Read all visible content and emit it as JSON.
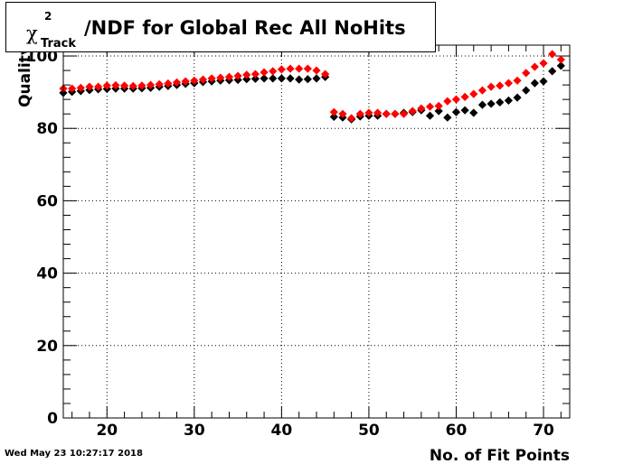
{
  "title": {
    "chi": "χ",
    "superscript": "2",
    "subscript": "Track",
    "rest": "/NDF for Global Rec All NoHits"
  },
  "timestamp": "Wed May 23 10:27:17 2018",
  "chart_data": {
    "type": "scatter",
    "xlabel": "No. of Fit Points",
    "ylabel": "Quality",
    "xlim": [
      15,
      73
    ],
    "ylim": [
      0,
      103
    ],
    "xticks": [
      20,
      30,
      40,
      50,
      60,
      70
    ],
    "yticks": [
      0,
      20,
      40,
      60,
      80,
      100
    ],
    "grid": true,
    "series": [
      {
        "color": "#000000",
        "x": [
          15,
          16,
          17,
          18,
          19,
          20,
          21,
          22,
          23,
          24,
          25,
          26,
          27,
          28,
          29,
          30,
          31,
          32,
          33,
          34,
          35,
          36,
          37,
          38,
          39,
          40,
          41,
          42,
          43,
          44,
          45,
          46,
          47,
          48,
          49,
          50,
          51,
          52,
          53,
          54,
          55,
          56,
          57,
          58,
          59,
          60,
          61,
          62,
          63,
          64,
          65,
          66,
          67,
          68,
          69,
          70,
          71,
          72
        ],
        "y": [
          89.8,
          90.1,
          90.3,
          90.6,
          90.8,
          90.9,
          91.0,
          91.0,
          91.0,
          91.1,
          91.2,
          91.5,
          91.7,
          92.0,
          92.3,
          92.5,
          92.8,
          93.0,
          93.2,
          93.3,
          93.4,
          93.6,
          93.7,
          93.8,
          93.8,
          93.8,
          93.8,
          93.5,
          93.6,
          93.8,
          94.2,
          83.2,
          83.0,
          82.5,
          83.3,
          83.5,
          83.5,
          84.0,
          84.0,
          84.3,
          84.5,
          85.0,
          83.5,
          84.8,
          83.0,
          84.5,
          85.0,
          84.3,
          86.5,
          86.8,
          87.2,
          87.7,
          88.5,
          90.5,
          92.5,
          93.0,
          95.8,
          97.3
        ]
      },
      {
        "color": "#ff0000",
        "x": [
          15,
          16,
          17,
          18,
          19,
          20,
          21,
          22,
          23,
          24,
          25,
          26,
          27,
          28,
          29,
          30,
          31,
          32,
          33,
          34,
          35,
          36,
          37,
          38,
          39,
          40,
          41,
          42,
          43,
          44,
          45,
          46,
          47,
          48,
          49,
          50,
          51,
          52,
          53,
          54,
          55,
          56,
          57,
          58,
          59,
          60,
          61,
          62,
          63,
          64,
          65,
          66,
          67,
          68,
          69,
          70,
          71,
          72
        ],
        "y": [
          91.0,
          91.0,
          91.2,
          91.5,
          91.5,
          91.8,
          91.9,
          91.8,
          91.7,
          91.8,
          92.0,
          92.2,
          92.4,
          92.7,
          93.0,
          93.2,
          93.5,
          93.8,
          94.0,
          94.2,
          94.5,
          94.8,
          95.0,
          95.5,
          95.8,
          96.3,
          96.5,
          96.5,
          96.5,
          96.0,
          95.0,
          84.5,
          84.0,
          82.8,
          84.0,
          84.3,
          84.3,
          84.0,
          84.0,
          84.0,
          84.8,
          85.5,
          86.0,
          86.2,
          87.5,
          88.0,
          88.7,
          89.5,
          90.5,
          91.5,
          91.8,
          92.5,
          93.2,
          95.3,
          97.0,
          98.0,
          100.5,
          99.0
        ]
      }
    ]
  }
}
